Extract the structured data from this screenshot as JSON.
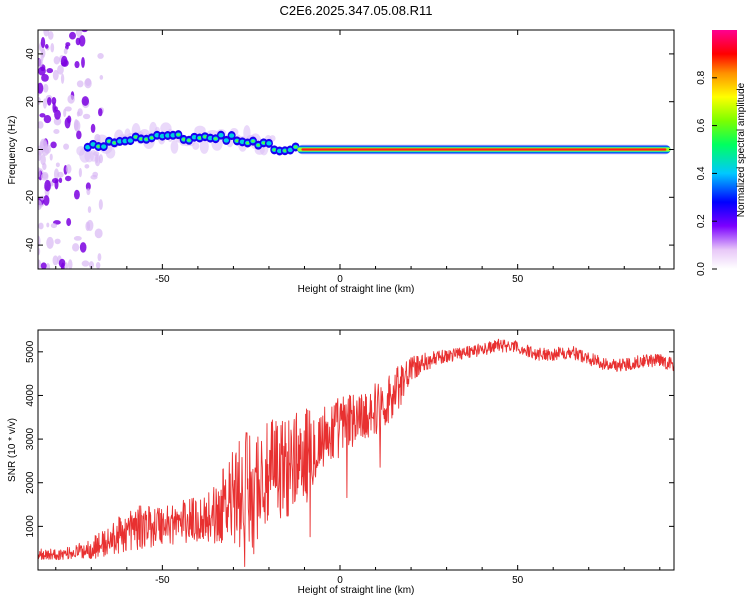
{
  "title": "C2E6.2025.347.05.08.R11",
  "chart_data": [
    {
      "type": "heatmap",
      "xlabel": "Height of straight line (km)",
      "ylabel": "Frequency (Hz)",
      "xlim": [
        -85,
        94
      ],
      "ylim": [
        -50,
        50
      ],
      "x_ticks": [
        -50,
        0,
        50
      ],
      "y_ticks": [
        -40,
        -20,
        0,
        20,
        40
      ],
      "colorbar": {
        "label": "Normalized spectral amplitude",
        "range": [
          0.0,
          1.0
        ],
        "ticks": [
          0.0,
          0.2,
          0.4,
          0.6,
          0.8
        ]
      },
      "ridge": [
        {
          "x": -84,
          "y": 0
        },
        {
          "x": -70,
          "y": 1
        },
        {
          "x": -60,
          "y": 4
        },
        {
          "x": -50,
          "y": 5
        },
        {
          "x": -40,
          "y": 5
        },
        {
          "x": -30,
          "y": 5
        },
        {
          "x": -22,
          "y": 2
        },
        {
          "x": -15,
          "y": 0
        },
        {
          "x": -10,
          "y": 0
        },
        {
          "x": 0,
          "y": 0
        },
        {
          "x": 20,
          "y": 0
        },
        {
          "x": 94,
          "y": 0
        }
      ]
    },
    {
      "type": "line",
      "xlabel": "Height of straight line (km)",
      "ylabel": "SNR (10 * v/v)",
      "xlim": [
        -85,
        94
      ],
      "ylim": [
        0,
        5500
      ],
      "x_ticks": [
        -50,
        0,
        50
      ],
      "y_ticks": [
        1000,
        2000,
        3000,
        4000,
        5000
      ],
      "color": "#e83030",
      "envelope": {
        "x": [
          -85,
          -80,
          -75,
          -70,
          -65,
          -60,
          -55,
          -50,
          -45,
          -40,
          -35,
          -30,
          -25,
          -20,
          -15,
          -10,
          -5,
          0,
          5,
          10,
          15,
          20,
          25,
          30,
          35,
          40,
          45,
          50,
          55,
          60,
          65,
          70,
          75,
          80,
          85,
          90,
          94
        ],
        "base": [
          380,
          350,
          400,
          500,
          650,
          900,
          1000,
          1050,
          1100,
          1150,
          1300,
          1600,
          1900,
          2100,
          2400,
          2700,
          3000,
          3300,
          3500,
          3700,
          4000,
          4600,
          4800,
          4900,
          5000,
          5050,
          5150,
          5100,
          4950,
          4950,
          5000,
          4850,
          4700,
          4700,
          4800,
          4800,
          4700
        ],
        "noise": [
          150,
          120,
          150,
          250,
          350,
          500,
          500,
          500,
          500,
          550,
          700,
          1200,
          1400,
          1300,
          1200,
          1000,
          800,
          700,
          600,
          600,
          600,
          300,
          200,
          150,
          150,
          150,
          150,
          150,
          150,
          150,
          150,
          150,
          150,
          150,
          150,
          150,
          150
        ]
      }
    }
  ]
}
